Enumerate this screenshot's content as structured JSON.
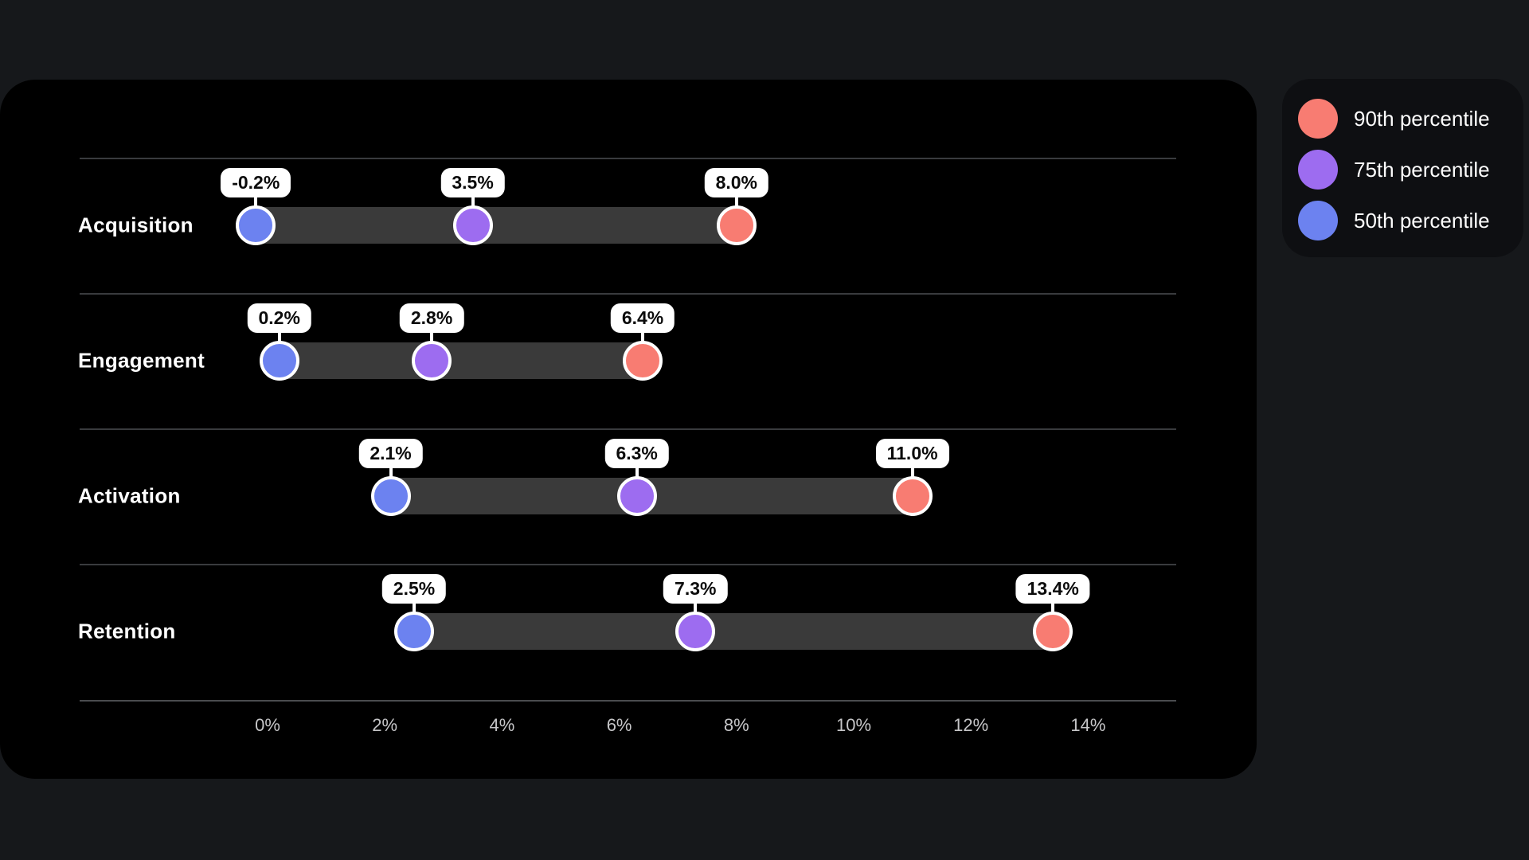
{
  "chart_data": {
    "type": "dumbbell",
    "title": "",
    "categories": [
      "Acquisition",
      "Engagement",
      "Activation",
      "Retention"
    ],
    "series": [
      {
        "name": "50th percentile",
        "color": "#6c82f0",
        "values": [
          -0.2,
          0.2,
          2.1,
          2.5
        ]
      },
      {
        "name": "75th percentile",
        "color": "#9d6cf0",
        "values": [
          3.5,
          2.8,
          6.3,
          7.3
        ]
      },
      {
        "name": "90th percentile",
        "color": "#f87c72",
        "values": [
          8.0,
          6.4,
          11.0,
          13.4
        ]
      }
    ],
    "value_labels": [
      [
        "-0.2%",
        "3.5%",
        "8.0%"
      ],
      [
        "0.2%",
        "2.8%",
        "6.4%"
      ],
      [
        "2.1%",
        "6.3%",
        "11.0%"
      ],
      [
        "2.5%",
        "7.3%",
        "13.4%"
      ]
    ],
    "x_ticks": [
      "0%",
      "2%",
      "4%",
      "6%",
      "8%",
      "10%",
      "12%",
      "14%"
    ],
    "x_tick_values": [
      0,
      2,
      4,
      6,
      8,
      10,
      12,
      14
    ],
    "xlim": [
      -3.2,
      15.5
    ],
    "xlabel": "",
    "ylabel": "",
    "grid": "horizontal-row-separators",
    "legend_position": "top-right"
  },
  "legend": {
    "items": [
      {
        "label": "90th percentile",
        "color": "#f87c72"
      },
      {
        "label": "75th percentile",
        "color": "#9d6cf0"
      },
      {
        "label": "50th percentile",
        "color": "#6c82f0"
      }
    ]
  },
  "colors": {
    "percentile_90": "#f87c72",
    "percentile_75": "#9d6cf0",
    "percentile_50": "#6c82f0",
    "range_bar": "#3a3a3a",
    "card_background": "#000000",
    "page_background": "#16181b",
    "legend_background": "#0e0f12"
  }
}
